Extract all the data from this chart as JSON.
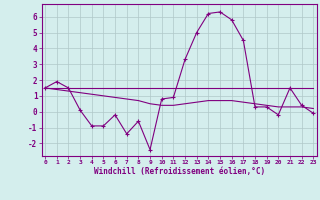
{
  "hours": [
    0,
    1,
    2,
    3,
    4,
    5,
    6,
    7,
    8,
    9,
    10,
    11,
    12,
    13,
    14,
    15,
    16,
    17,
    18,
    19,
    20,
    21,
    22,
    23
  ],
  "windchill": [
    1.5,
    1.9,
    1.5,
    0.1,
    -0.9,
    -0.9,
    -0.2,
    -1.4,
    -0.6,
    -2.4,
    0.8,
    0.9,
    3.3,
    5.0,
    6.2,
    6.3,
    5.8,
    4.5,
    0.3,
    0.3,
    -0.2,
    1.5,
    0.4,
    -0.1
  ],
  "flat_line": [
    1.5,
    1.5,
    1.5,
    1.5,
    1.5,
    1.5,
    1.5,
    1.5,
    1.5,
    1.5,
    1.5,
    1.5,
    1.5,
    1.5,
    1.5,
    1.5,
    1.5,
    1.5,
    1.5,
    1.5,
    1.5,
    1.5,
    1.5,
    1.5
  ],
  "avg_line": [
    1.5,
    1.4,
    1.3,
    1.2,
    1.1,
    1.0,
    0.9,
    0.8,
    0.7,
    0.5,
    0.4,
    0.4,
    0.5,
    0.6,
    0.7,
    0.7,
    0.7,
    0.6,
    0.5,
    0.4,
    0.3,
    0.3,
    0.3,
    0.2
  ],
  "line_color": "#800080",
  "marker_color": "#800080",
  "bg_color": "#d4eeed",
  "grid_color": "#b0c8c8",
  "xlabel": "Windchill (Refroidissement éolien,°C)",
  "ylim": [
    -2.8,
    6.8
  ],
  "yticks": [
    -2,
    -1,
    0,
    1,
    2,
    3,
    4,
    5,
    6
  ],
  "xticks": [
    0,
    1,
    2,
    3,
    4,
    5,
    6,
    7,
    8,
    9,
    10,
    11,
    12,
    13,
    14,
    15,
    16,
    17,
    18,
    19,
    20,
    21,
    22,
    23
  ],
  "xlabel_fontsize": 5.5,
  "ytick_fontsize": 5.5,
  "xtick_fontsize": 4.5
}
